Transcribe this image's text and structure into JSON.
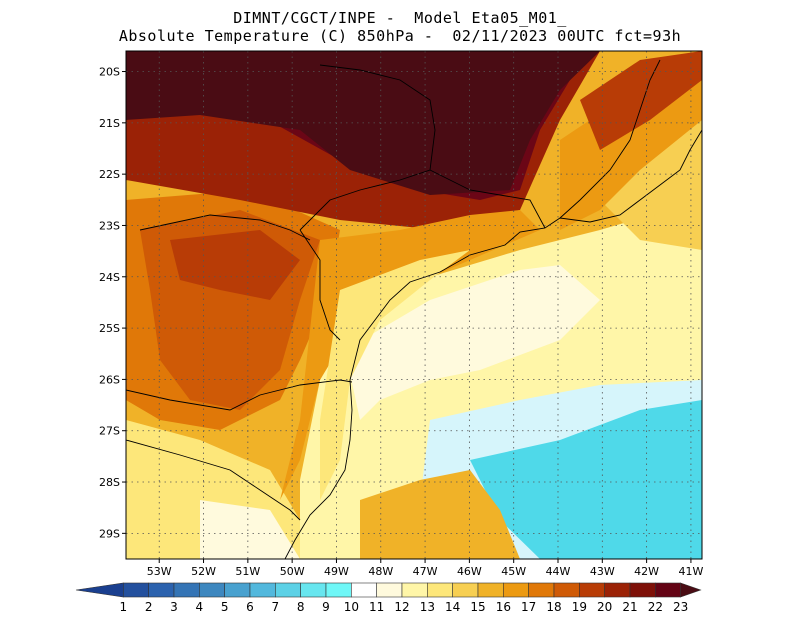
{
  "header": {
    "line1": "DIMNT/CGCT/INPE -  Model Eta05_M01_",
    "line2": "Absolute Temperature (C) 850hPa -  02/11/2023 00UTC fct=93h"
  },
  "axes": {
    "lat_labels": [
      "20S",
      "21S",
      "22S",
      "23S",
      "24S",
      "25S",
      "26S",
      "27S",
      "28S",
      "29S"
    ],
    "lon_labels": [
      "53W",
      "52W",
      "51W",
      "50W",
      "49W",
      "48W",
      "47W",
      "46W",
      "45W",
      "44W",
      "43W",
      "42W",
      "41W"
    ]
  },
  "colorbar": {
    "labels": [
      "1",
      "2",
      "3",
      "4",
      "5",
      "6",
      "7",
      "8",
      "9",
      "10",
      "11",
      "12",
      "13",
      "14",
      "15",
      "16",
      "17",
      "18",
      "19",
      "20",
      "21",
      "22",
      "23"
    ],
    "colors": [
      "#1a3f8f",
      "#23509e",
      "#2b62ae",
      "#3474b5",
      "#3d87bf",
      "#48a1cf",
      "#52b8dd",
      "#5cd1e6",
      "#67e6ef",
      "#6ff7f7",
      "#ffffff",
      "#fffadd",
      "#fff6a8",
      "#fde77a",
      "#f7cf52",
      "#f0b228",
      "#ec9a12",
      "#e07808",
      "#cf5a06",
      "#b83c06",
      "#9b2206",
      "#7e1008",
      "#640314",
      "#4a0c14"
    ]
  },
  "map": {
    "lon_range": [
      -53.75,
      -40.75
    ],
    "lat_range": [
      -29.5,
      -19.6
    ],
    "grid": "dotted",
    "field_colors": {
      "c12": "#fffadd",
      "c13": "#fff6a8",
      "c14": "#fde77a",
      "c15": "#f7cf52",
      "c16": "#f0b228",
      "c17": "#ec9a12",
      "c18": "#e07808",
      "c19": "#cf5a06",
      "c20": "#b83c06",
      "c21": "#9b2206",
      "c22": "#7e1008",
      "c22b": "#6b0616",
      "c23": "#4a0c14",
      "c10": "#6ff7f7",
      "c9": "#4fd9e9",
      "c11": "#d6f5fb"
    }
  }
}
